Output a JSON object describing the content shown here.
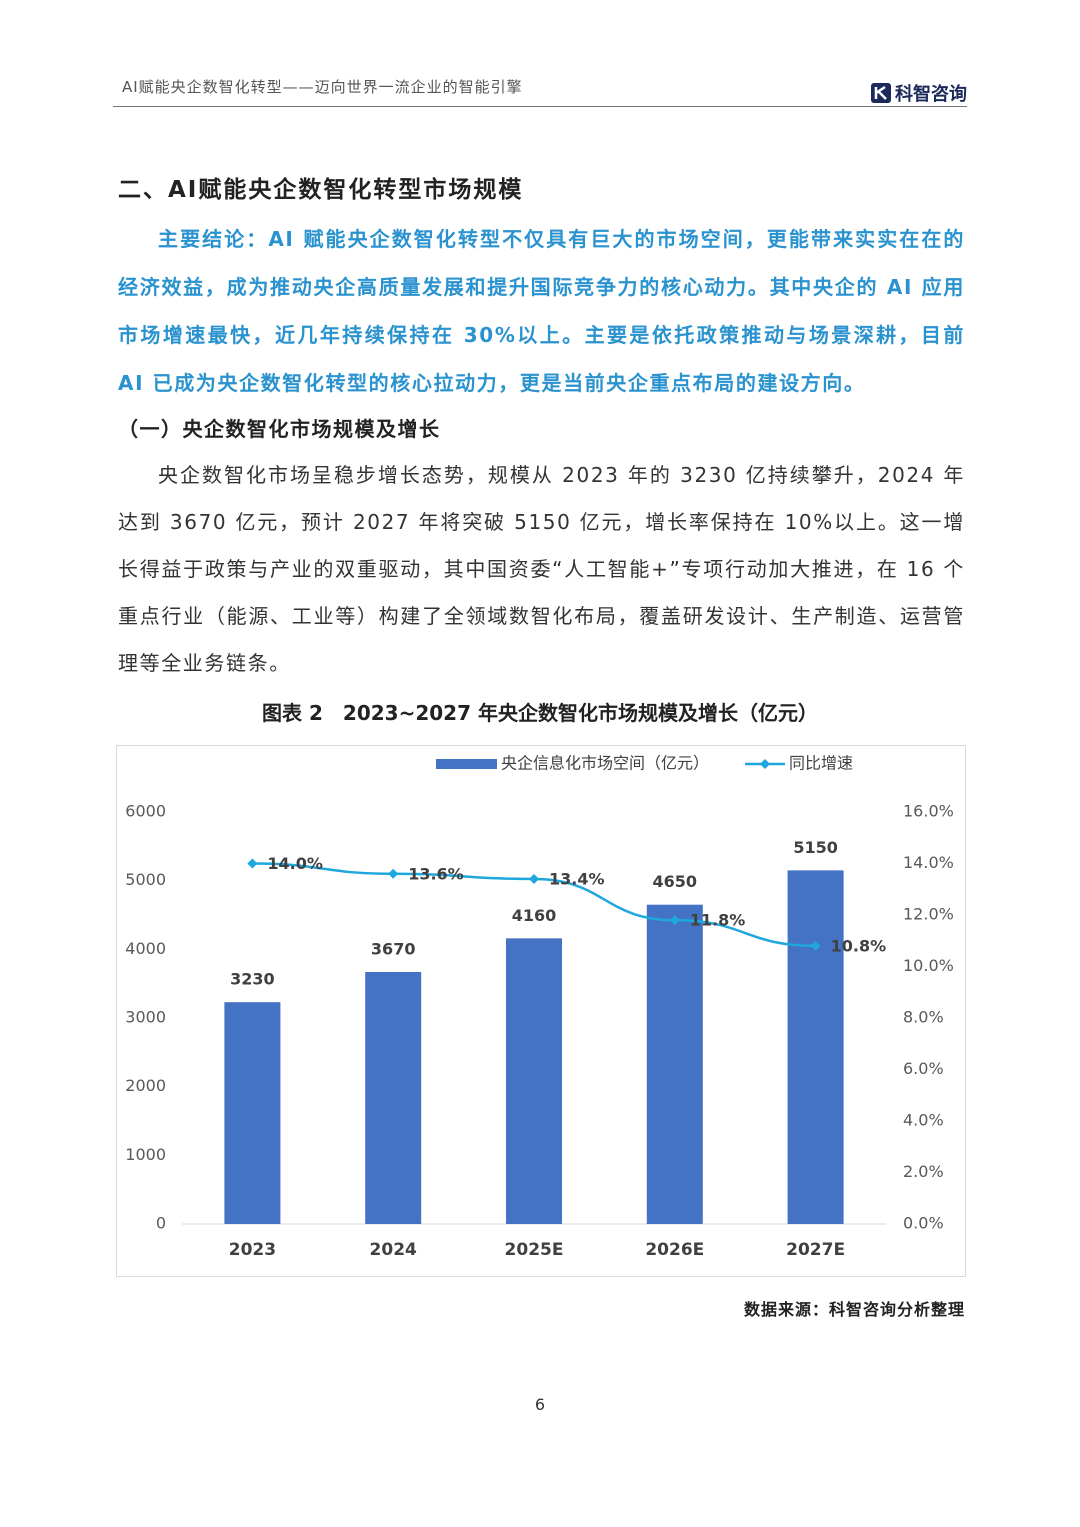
{
  "header": {
    "title": "AI赋能央企数智化转型——迈向世界一流企业的智能引擎",
    "logo": "科智咨询"
  },
  "section_title": "二、AI赋能央企数智化转型市场规模",
  "key_conclusion": "主要结论：AI 赋能央企数智化转型不仅具有巨大的市场空间，更能带来实实在在的经济效益，成为推动央企高质量发展和提升国际竞争力的核心动力。其中央企的 AI 应用市场增速最快，近几年持续保持在 30%以上。主要是依托政策推动与场景深耕，目前 AI 已成为央企数智化转型的核心拉动力，更是当前央企重点布局的建设方向。",
  "subsection_title": "（一）央企数智化市场规模及增长",
  "paragraph": "央企数智化市场呈稳步增长态势，规模从 2023 年的 3230 亿持续攀升，2024 年达到 3670 亿元，预计 2027 年将突破 5150 亿元，增长率保持在 10%以上。这一增长得益于政策与产业的双重驱动，其中国资委“人工智能+”专项行动加大推进，在 16 个重点行业（能源、工业等）构建了全领域数智化布局，覆盖研发设计、生产制造、运营管理等全业务链条。",
  "figure_caption": "图表 2　2023~2027 年央企数智化市场规模及增长（亿元）",
  "chart_data": {
    "type": "combo",
    "categories": [
      "2023",
      "2024",
      "2025E",
      "2026E",
      "2027E"
    ],
    "series": [
      {
        "name": "央企信息化市场空间（亿元）",
        "type": "bar",
        "color": "#4472c4",
        "values": [
          3230,
          3670,
          4160,
          4650,
          5150
        ]
      },
      {
        "name": "同比增速",
        "type": "line",
        "axis": "y2",
        "color": "#1ea7dc",
        "values": [
          14.0,
          13.6,
          13.4,
          11.8,
          10.8
        ],
        "value_labels": [
          "14.0%",
          "13.6%",
          "13.4%",
          "11.8%",
          "10.8%"
        ]
      }
    ],
    "ylim": [
      0,
      6000
    ],
    "yticks": [
      0,
      1000,
      2000,
      3000,
      4000,
      5000,
      6000
    ],
    "y2lim": [
      0,
      16
    ],
    "y2ticks": [
      {
        "value": 0,
        "label": "0.0%"
      },
      {
        "value": 2,
        "label": "2.0%"
      },
      {
        "value": 4,
        "label": "4.0%"
      },
      {
        "value": 6,
        "label": "6.0%"
      },
      {
        "value": 8,
        "label": "8.0%"
      },
      {
        "value": 10,
        "label": "10.0%"
      },
      {
        "value": 12,
        "label": "12.0%"
      },
      {
        "value": 14,
        "label": "14.0%"
      },
      {
        "value": 16,
        "label": "16.0%"
      }
    ],
    "grid": false,
    "legend": "top"
  },
  "source": "数据来源：科智咨询分析整理",
  "page_number": "6"
}
